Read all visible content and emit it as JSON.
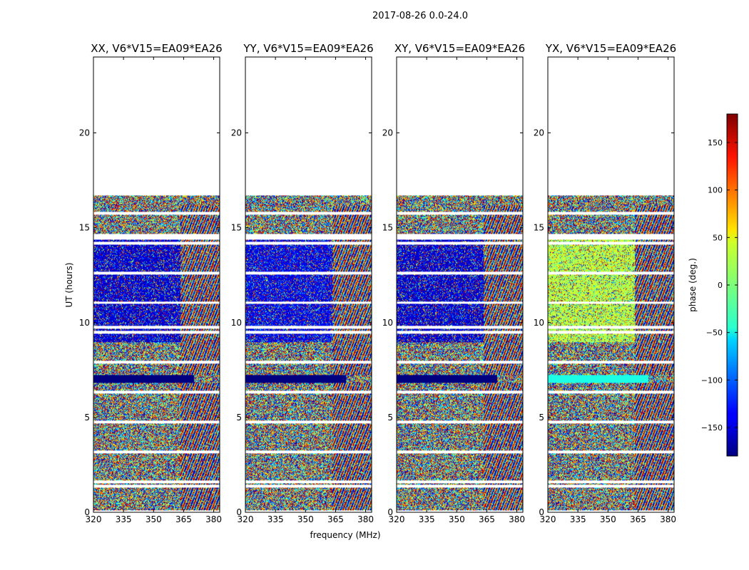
{
  "figure_title": "2017-08-26 0.0-24.0",
  "colorbar": {
    "label": "phase (deg.)",
    "ticks": [
      150,
      100,
      50,
      0,
      -50,
      -100,
      -150
    ],
    "range": [
      -180,
      180
    ],
    "colormap": "jet"
  },
  "chart_data": [
    {
      "type": "heatmap",
      "title": "XX, V6*V15=EA09*EA26",
      "xlabel": "",
      "ylabel": "UT (hours)",
      "xlim": [
        320,
        383
      ],
      "ylim": [
        0,
        24
      ],
      "xticks": [
        320,
        335,
        350,
        365,
        380
      ],
      "yticks": [
        0,
        5,
        10,
        15,
        20
      ],
      "data_extent_hours": [
        0,
        16.7
      ],
      "dominant_phase_deg": -150
    },
    {
      "type": "heatmap",
      "title": "YY, V6*V15=EA09*EA26",
      "xlabel": "frequency (MHz)",
      "ylabel": "",
      "xlim": [
        320,
        383
      ],
      "ylim": [
        0,
        24
      ],
      "xticks": [
        320,
        335,
        350,
        365,
        380
      ],
      "yticks": [
        0,
        5,
        10,
        15,
        20
      ],
      "data_extent_hours": [
        0,
        16.7
      ],
      "dominant_phase_deg": -140
    },
    {
      "type": "heatmap",
      "title": "XY, V6*V15=EA09*EA26",
      "xlabel": "",
      "ylabel": "",
      "xlim": [
        320,
        383
      ],
      "ylim": [
        0,
        24
      ],
      "xticks": [
        320,
        335,
        350,
        365,
        380
      ],
      "yticks": [
        0,
        5,
        10,
        15,
        20
      ],
      "data_extent_hours": [
        0,
        16.7
      ],
      "dominant_phase_deg": -150
    },
    {
      "type": "heatmap",
      "title": "YX, V6*V15=EA09*EA26",
      "xlabel": "",
      "ylabel": "",
      "xlim": [
        320,
        383
      ],
      "ylim": [
        0,
        24
      ],
      "xticks": [
        320,
        335,
        350,
        365,
        380
      ],
      "yticks": [
        0,
        5,
        10,
        15,
        20
      ],
      "data_extent_hours": [
        0,
        16.7
      ],
      "dominant_phase_deg": 20
    }
  ]
}
